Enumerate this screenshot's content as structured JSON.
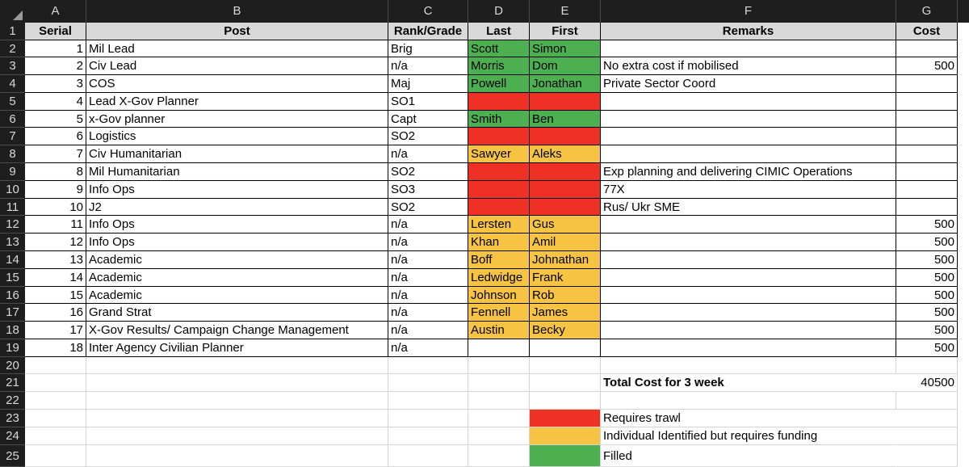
{
  "columns": [
    "A",
    "B",
    "C",
    "D",
    "E",
    "F",
    "G"
  ],
  "rows": [
    "1",
    "2",
    "3",
    "4",
    "5",
    "6",
    "7",
    "8",
    "9",
    "10",
    "11",
    "12",
    "13",
    "14",
    "15",
    "16",
    "17",
    "18",
    "19",
    "20",
    "21",
    "22",
    "23",
    "24",
    "25"
  ],
  "table": {
    "headers": {
      "serial": "Serial",
      "post": "Post",
      "rank": "Rank/Grade",
      "last": "Last",
      "first": "First",
      "remarks": "Remarks",
      "cost": "Cost"
    },
    "records": [
      {
        "serial": "1",
        "post": "Mil Lead",
        "rank": "Brig",
        "last": "Scott",
        "first": "Simon",
        "remarks": "",
        "cost": "",
        "status": "filled"
      },
      {
        "serial": "2",
        "post": "Civ Lead",
        "rank": "n/a",
        "last": "Morris",
        "first": "Dom",
        "remarks": "No extra cost if mobilised",
        "cost": "500",
        "status": "filled"
      },
      {
        "serial": "3",
        "post": "COS",
        "rank": "Maj",
        "last": "Powell",
        "first": "Jonathan",
        "remarks": "Private Sector Coord",
        "cost": "",
        "status": "filled"
      },
      {
        "serial": "4",
        "post": "Lead X-Gov Planner",
        "rank": "SO1",
        "last": "",
        "first": "",
        "remarks": "",
        "cost": "",
        "status": "trawl"
      },
      {
        "serial": "5",
        "post": "x-Gov planner",
        "rank": "Capt",
        "last": "Smith",
        "first": "Ben",
        "remarks": "",
        "cost": "",
        "status": "filled"
      },
      {
        "serial": "6",
        "post": "Logistics",
        "rank": "SO2",
        "last": "",
        "first": "",
        "remarks": "",
        "cost": "",
        "status": "trawl"
      },
      {
        "serial": "7",
        "post": "Civ Humanitarian",
        "rank": "n/a",
        "last": "Sawyer",
        "first": "Aleks",
        "remarks": "",
        "cost": "",
        "status": "funding"
      },
      {
        "serial": "8",
        "post": "Mil Humanitarian",
        "rank": "SO2",
        "last": "",
        "first": "",
        "remarks": "Exp planning and delivering CIMIC Operations",
        "cost": "",
        "status": "trawl"
      },
      {
        "serial": "9",
        "post": "Info Ops",
        "rank": "SO3",
        "last": "",
        "first": "",
        "remarks": "77X",
        "cost": "",
        "status": "trawl"
      },
      {
        "serial": "10",
        "post": "J2",
        "rank": "SO2",
        "last": "",
        "first": "",
        "remarks": "Rus/ Ukr SME",
        "cost": "",
        "status": "trawl"
      },
      {
        "serial": "11",
        "post": "Info Ops",
        "rank": "n/a",
        "last": "Lersten",
        "first": "Gus",
        "remarks": "",
        "cost": "500",
        "status": "funding"
      },
      {
        "serial": "12",
        "post": "Info Ops",
        "rank": "n/a",
        "last": "Khan",
        "first": "Amil",
        "remarks": "",
        "cost": "500",
        "status": "funding"
      },
      {
        "serial": "13",
        "post": "Academic",
        "rank": "n/a",
        "last": "Boff",
        "first": "Johnathan",
        "remarks": "",
        "cost": "500",
        "status": "funding"
      },
      {
        "serial": "14",
        "post": "Academic",
        "rank": "n/a",
        "last": "Ledwidge",
        "first": "Frank",
        "remarks": "",
        "cost": "500",
        "status": "funding"
      },
      {
        "serial": "15",
        "post": "Academic",
        "rank": "n/a",
        "last": "Johnson",
        "first": "Rob",
        "remarks": "",
        "cost": "500",
        "status": "funding"
      },
      {
        "serial": "16",
        "post": "Grand Strat",
        "rank": "n/a",
        "last": "Fennell",
        "first": "James",
        "remarks": "",
        "cost": "500",
        "status": "funding"
      },
      {
        "serial": "17",
        "post": "X-Gov Results/ Campaign Change Management",
        "rank": "n/a",
        "last": "Austin",
        "first": "Becky",
        "remarks": "",
        "cost": "500",
        "status": "funding"
      },
      {
        "serial": "18",
        "post": "Inter Agency Civilian Planner",
        "rank": "n/a",
        "last": "",
        "first": "",
        "remarks": "",
        "cost": "500",
        "status": "none"
      }
    ]
  },
  "total": {
    "label": "Total Cost for 3 week",
    "value": "40500"
  },
  "legend": [
    {
      "label": "Requires trawl",
      "status": "trawl"
    },
    {
      "label": "Individual Identified but requires funding",
      "status": "funding"
    },
    {
      "label": "Filled",
      "status": "filled"
    }
  ],
  "colors": {
    "trawl": "#ee3124",
    "funding": "#f6c342",
    "filled": "#4caf50",
    "header_bg": "#d9d9d9"
  }
}
